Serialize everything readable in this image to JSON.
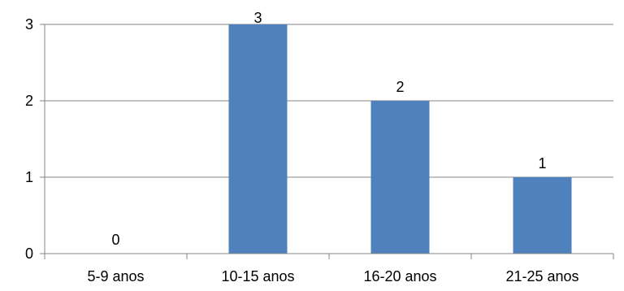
{
  "chart_data": {
    "type": "bar",
    "categories": [
      "5-9 anos",
      "10-15 anos",
      "16-20 anos",
      "21-25 anos"
    ],
    "values": [
      0,
      3,
      2,
      1
    ],
    "data_labels": [
      "0",
      "3",
      "2",
      "1"
    ],
    "title": "",
    "xlabel": "",
    "ylabel": "",
    "ylim": [
      0,
      3
    ],
    "yticks": [
      0,
      1,
      2,
      3
    ],
    "grid": true,
    "legend": "none",
    "colors": {
      "bar": "#4f81bd",
      "gridline": "#868686",
      "axis": "#868686"
    }
  }
}
